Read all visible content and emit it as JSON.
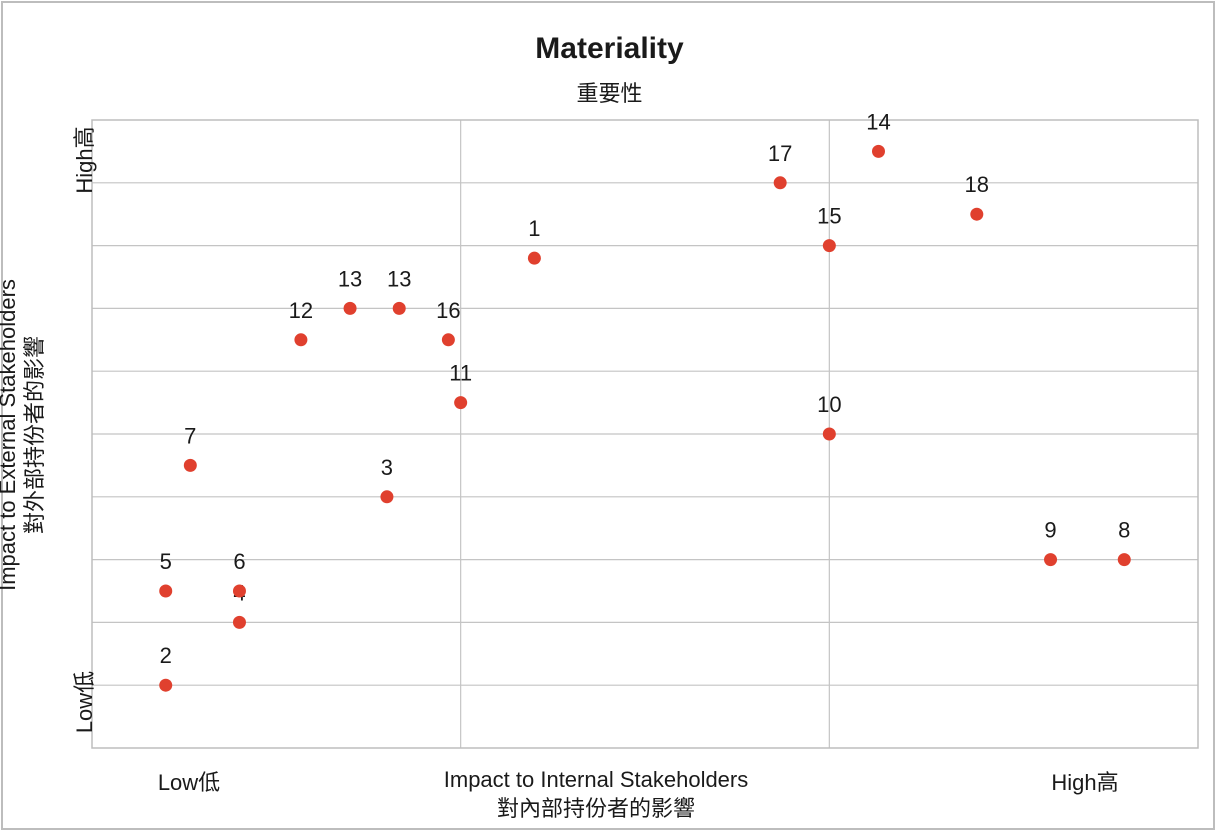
{
  "chart_data": {
    "type": "scatter",
    "title": "Materiality",
    "subtitle": "重要性",
    "xlabel": "Impact to Internal Stakeholders",
    "xlabel_zh": "對內部持份者的影響",
    "ylabel": "Impact to External Stakeholders",
    "ylabel_zh": "對外部持份者的影響",
    "x_tick_low": "Low低",
    "x_tick_high": "High高",
    "y_tick_low": "Low低",
    "y_tick_high": "High高",
    "xlim": [
      0,
      9
    ],
    "ylim": [
      0,
      10
    ],
    "x_gridlines": [
      3,
      6
    ],
    "y_gridlines": [
      1,
      2,
      3,
      4,
      5,
      6,
      7,
      8,
      9
    ],
    "grid": true,
    "point_color": "#e0402e",
    "points": [
      {
        "label": "1",
        "x": 3.6,
        "y": 7.8
      },
      {
        "label": "2",
        "x": 0.6,
        "y": 1.0
      },
      {
        "label": "3",
        "x": 2.4,
        "y": 4.0
      },
      {
        "label": "4",
        "x": 1.2,
        "y": 2.0
      },
      {
        "label": "5",
        "x": 0.6,
        "y": 2.5
      },
      {
        "label": "6",
        "x": 1.2,
        "y": 2.5
      },
      {
        "label": "7",
        "x": 0.8,
        "y": 4.5
      },
      {
        "label": "8",
        "x": 8.4,
        "y": 3.0
      },
      {
        "label": "9",
        "x": 7.8,
        "y": 3.0
      },
      {
        "label": "10",
        "x": 6.0,
        "y": 5.0
      },
      {
        "label": "11",
        "x": 3.0,
        "y": 5.5
      },
      {
        "label": "12",
        "x": 1.7,
        "y": 6.5
      },
      {
        "label": "13",
        "x": 2.1,
        "y": 7.0
      },
      {
        "label": "13",
        "x": 2.5,
        "y": 7.0
      },
      {
        "label": "14",
        "x": 6.4,
        "y": 9.5
      },
      {
        "label": "15",
        "x": 6.0,
        "y": 8.0
      },
      {
        "label": "16",
        "x": 2.9,
        "y": 6.5
      },
      {
        "label": "17",
        "x": 5.6,
        "y": 9.0
      },
      {
        "label": "18",
        "x": 7.2,
        "y": 8.5
      }
    ]
  }
}
